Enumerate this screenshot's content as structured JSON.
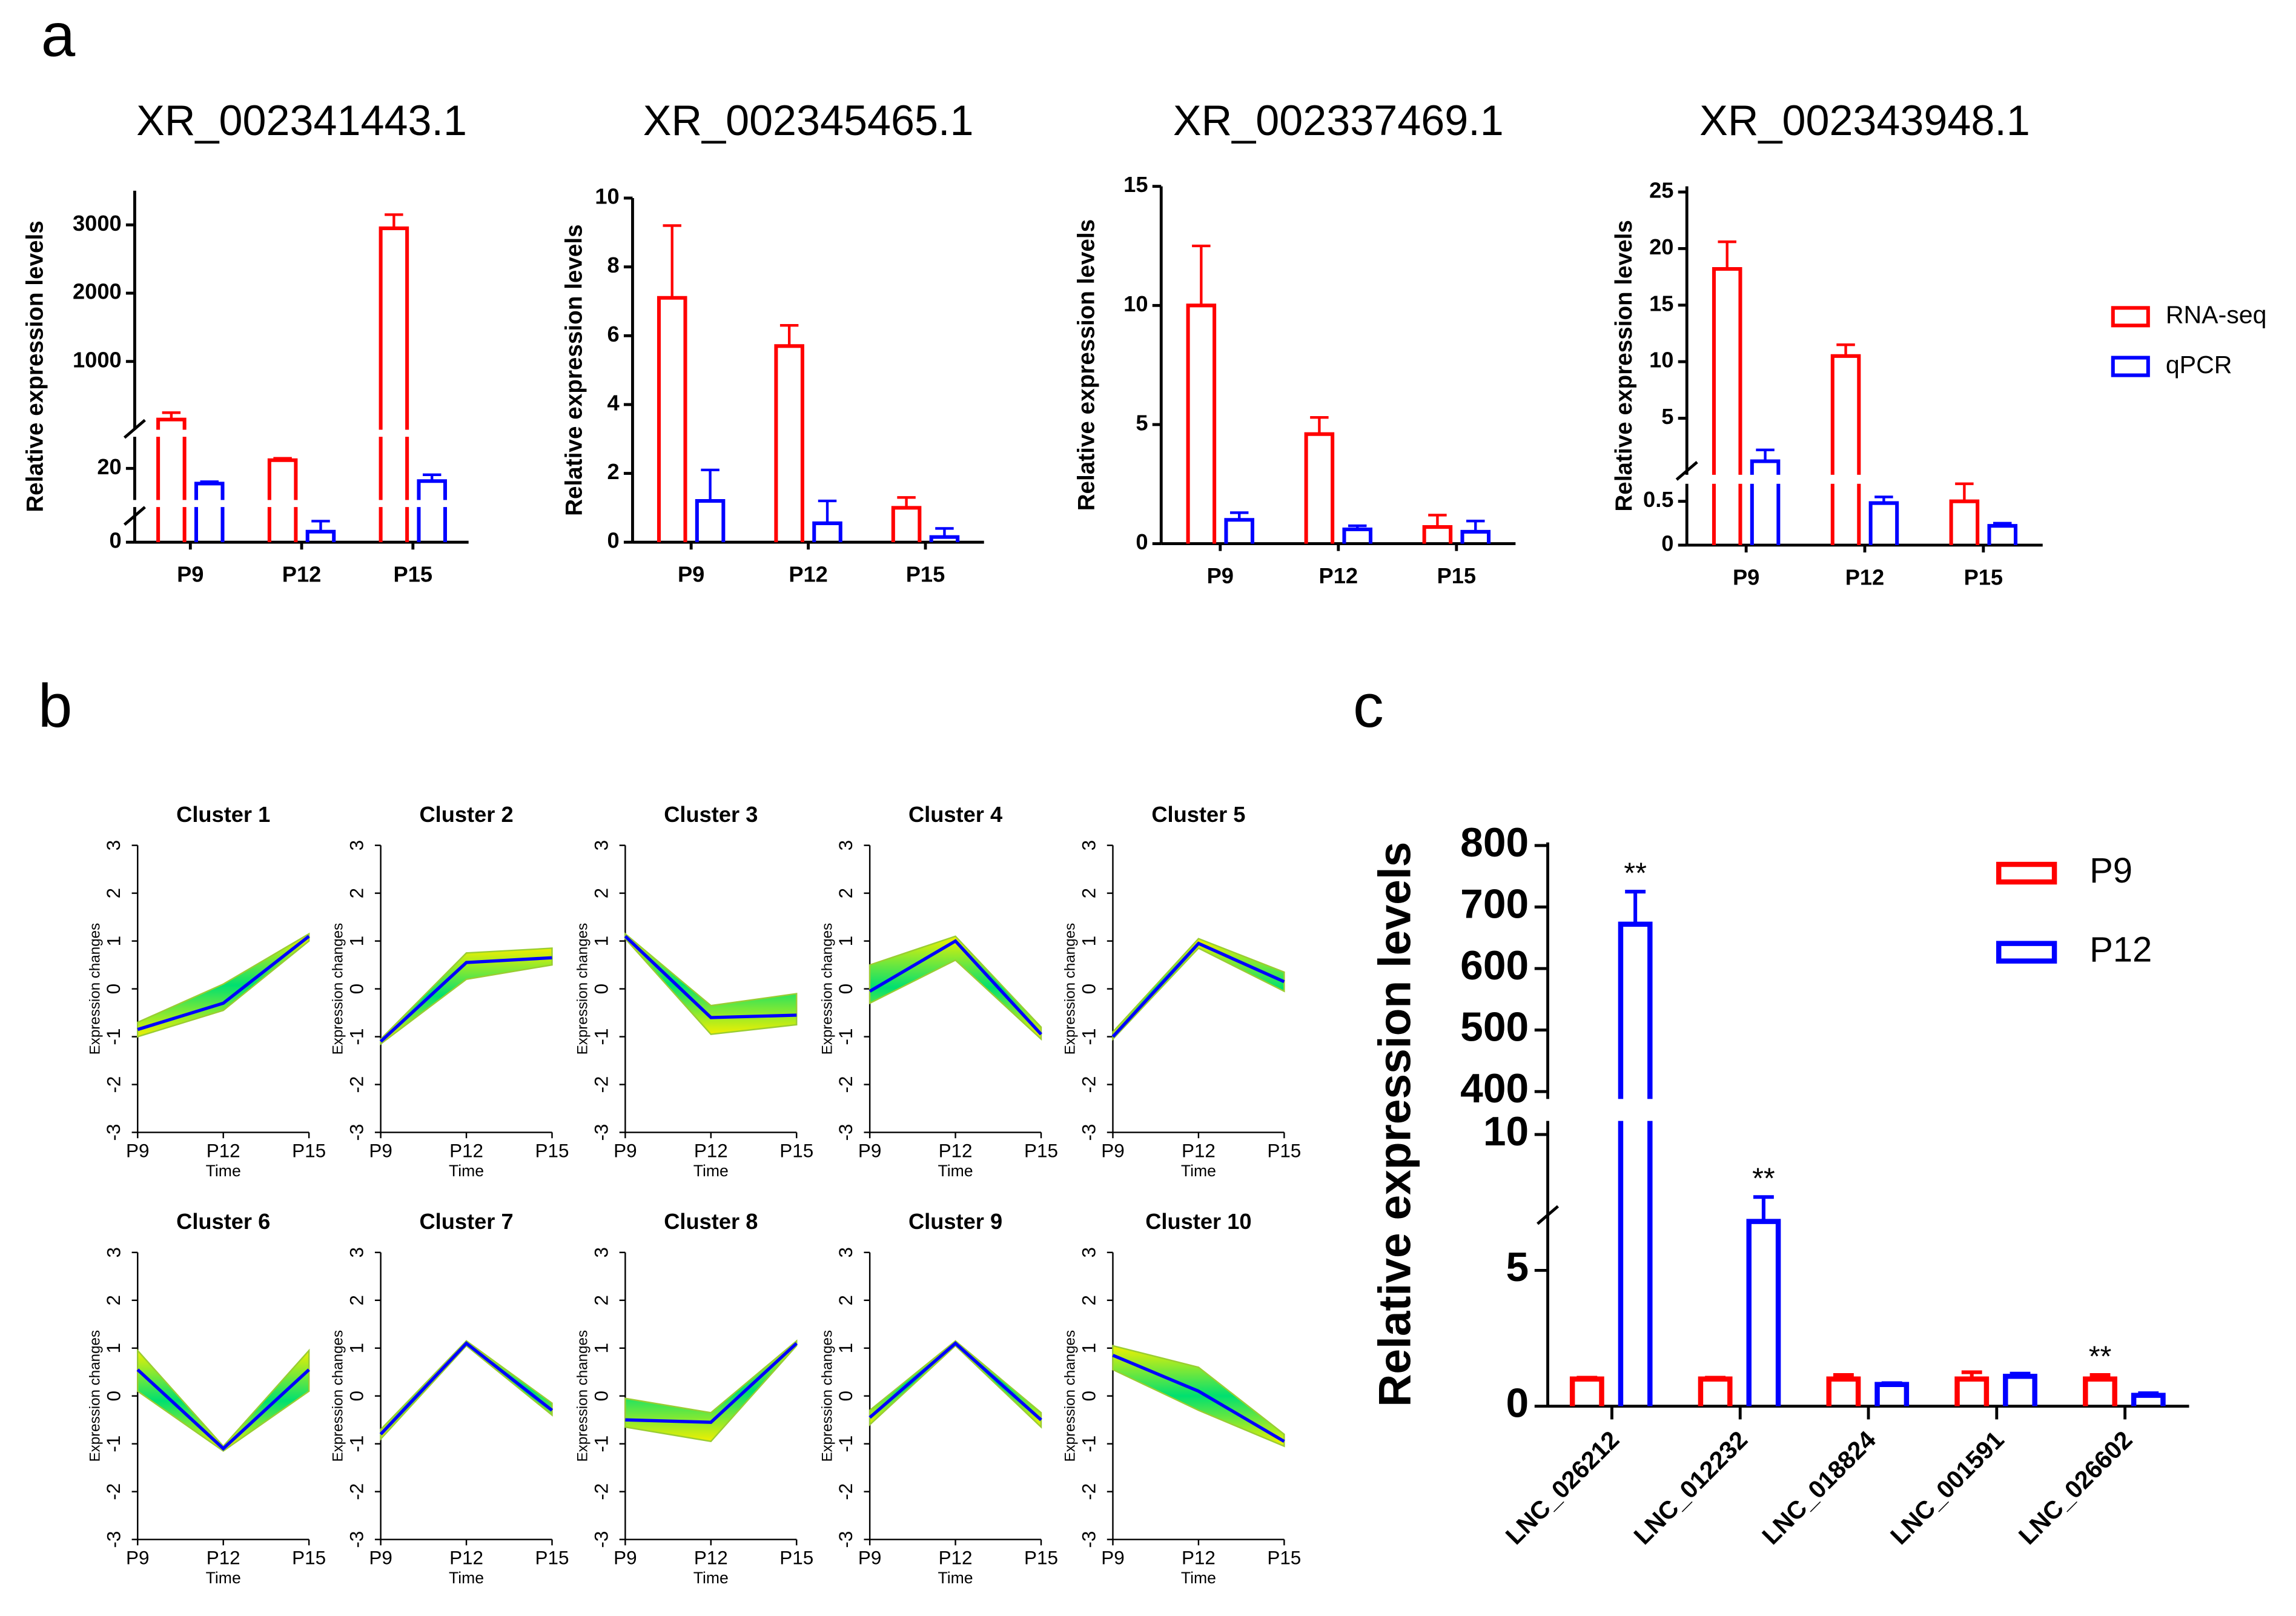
{
  "panel_labels": [
    "a",
    "b",
    "c"
  ],
  "chart_data": [
    {
      "type": "bar",
      "title": "XR_002341443.1",
      "ylabel": "Relative expression levels",
      "categories": [
        "P9",
        "P12",
        "P15"
      ],
      "ysegments": [
        {
          "ylim": [
            0,
            10
          ],
          "yticks": [
            0
          ]
        },
        {
          "ylim": [
            15,
            25
          ],
          "yticks": [
            20
          ]
        },
        {
          "ylim": [
            0,
            3500
          ],
          "yticks": [
            1000,
            2000,
            3000
          ]
        }
      ],
      "series": [
        {
          "color": "#ff0000",
          "values": [
            150,
            21.3,
            2950
          ],
          "errors": [
            100,
            0.3,
            200
          ]
        },
        {
          "color": "#0000ff",
          "values": [
            17.6,
            3,
            18
          ],
          "errors": [
            0.3,
            3,
            1
          ]
        }
      ]
    },
    {
      "type": "bar",
      "title": "XR_002345465.1",
      "ylabel": "Relative expression levels",
      "categories": [
        "P9",
        "P12",
        "P15"
      ],
      "ylim": [
        0,
        10
      ],
      "yticks": [
        0,
        2,
        4,
        6,
        8,
        10
      ],
      "series": [
        {
          "color": "#ff0000",
          "values": [
            7.1,
            5.7,
            1.0
          ],
          "errors": [
            2.1,
            0.6,
            0.3
          ]
        },
        {
          "color": "#0000ff",
          "values": [
            1.2,
            0.55,
            0.15
          ],
          "errors": [
            0.9,
            0.65,
            0.25
          ]
        }
      ]
    },
    {
      "type": "bar",
      "title": "XR_002337469.1",
      "ylabel": "Relative expression levels",
      "categories": [
        "P9",
        "P12",
        "P15"
      ],
      "ylim": [
        0,
        15
      ],
      "yticks": [
        0,
        5,
        10,
        15
      ],
      "series": [
        {
          "color": "#ff0000",
          "values": [
            10,
            4.6,
            0.7
          ],
          "errors": [
            2.5,
            0.7,
            0.5
          ]
        },
        {
          "color": "#0000ff",
          "values": [
            1.0,
            0.6,
            0.5
          ],
          "errors": [
            0.3,
            0.15,
            0.45
          ]
        }
      ]
    },
    {
      "type": "bar",
      "title": "XR_002343948.1",
      "ylabel": "Relative expression levels",
      "categories": [
        "P9",
        "P12",
        "P15"
      ],
      "ysegments": [
        {
          "ylim": [
            0,
            0.7
          ],
          "yticks": [
            0,
            0.5
          ]
        },
        {
          "ylim": [
            0,
            25.5
          ],
          "yticks": [
            5,
            10,
            15,
            20,
            25
          ]
        }
      ],
      "legend": "right",
      "series": [
        {
          "name": "RNA-seq",
          "color": "#ff0000",
          "values": [
            18.2,
            10.5,
            0.5
          ],
          "errors": [
            2.4,
            1.0,
            0.2
          ]
        },
        {
          "name": "qPCR",
          "color": "#0000ff",
          "values": [
            1.2,
            0.48,
            0.22
          ],
          "errors": [
            1.0,
            0.07,
            0.03
          ]
        }
      ]
    },
    {
      "type": "line",
      "title": "Cluster 1",
      "xlabel": "Time",
      "ylabel": "Expression changes",
      "categories": [
        "P9",
        "P12",
        "P15"
      ],
      "ylim": [
        -3,
        3
      ],
      "yticks": [
        -3,
        -2,
        -1,
        0,
        1,
        2,
        3
      ],
      "color": "#0000ff",
      "band_color": "#9acd32",
      "values": [
        -0.85,
        -0.3,
        1.1
      ],
      "band_low": [
        -1.0,
        -0.45,
        1.0
      ],
      "band_high": [
        -0.7,
        0.1,
        1.15
      ]
    },
    {
      "type": "line",
      "title": "Cluster 2",
      "xlabel": "Time",
      "ylabel": "Expression changes",
      "categories": [
        "P9",
        "P12",
        "P15"
      ],
      "ylim": [
        -3,
        3
      ],
      "yticks": [
        -3,
        -2,
        -1,
        0,
        1,
        2,
        3
      ],
      "color": "#0000ff",
      "band_color": "#9acd32",
      "values": [
        -1.1,
        0.55,
        0.65
      ],
      "band_low": [
        -1.15,
        0.2,
        0.5
      ],
      "band_high": [
        -1.05,
        0.75,
        0.85
      ]
    },
    {
      "type": "line",
      "title": "Cluster 3",
      "xlabel": "Time",
      "ylabel": "Expression changes",
      "categories": [
        "P9",
        "P12",
        "P15"
      ],
      "ylim": [
        -3,
        3
      ],
      "yticks": [
        -3,
        -2,
        -1,
        0,
        1,
        2,
        3
      ],
      "color": "#0000ff",
      "band_color": "#9acd32",
      "values": [
        1.1,
        -0.6,
        -0.55
      ],
      "band_low": [
        1.05,
        -0.95,
        -0.75
      ],
      "band_high": [
        1.15,
        -0.35,
        -0.1
      ]
    },
    {
      "type": "line",
      "title": "Cluster 4",
      "xlabel": "Time",
      "ylabel": "Expression changes",
      "categories": [
        "P9",
        "P12",
        "P15"
      ],
      "ylim": [
        -3,
        3
      ],
      "yticks": [
        -3,
        -2,
        -1,
        0,
        1,
        2,
        3
      ],
      "color": "#0000ff",
      "band_color": "#9acd32",
      "values": [
        -0.05,
        1.0,
        -0.95
      ],
      "band_low": [
        -0.3,
        0.6,
        -1.05
      ],
      "band_high": [
        0.5,
        1.1,
        -0.8
      ]
    },
    {
      "type": "line",
      "title": "Cluster 5",
      "xlabel": "Time",
      "ylabel": "Expression changes",
      "categories": [
        "P9",
        "P12",
        "P15"
      ],
      "ylim": [
        -3,
        3
      ],
      "yticks": [
        -3,
        -2,
        -1,
        0,
        1,
        2,
        3
      ],
      "color": "#0000ff",
      "band_color": "#9acd32",
      "values": [
        -1.0,
        0.95,
        0.15
      ],
      "band_low": [
        -1.05,
        0.85,
        -0.05
      ],
      "band_high": [
        -0.9,
        1.05,
        0.35
      ]
    },
    {
      "type": "line",
      "title": "Cluster 6",
      "xlabel": "Time",
      "ylabel": "Expression changes",
      "categories": [
        "P9",
        "P12",
        "P15"
      ],
      "ylim": [
        -3,
        3
      ],
      "yticks": [
        -3,
        -2,
        -1,
        0,
        1,
        2,
        3
      ],
      "color": "#0000ff",
      "band_color": "#9acd32",
      "values": [
        0.55,
        -1.1,
        0.55
      ],
      "band_low": [
        0.1,
        -1.15,
        0.1
      ],
      "band_high": [
        0.95,
        -1.05,
        0.95
      ]
    },
    {
      "type": "line",
      "title": "Cluster 7",
      "xlabel": "Time",
      "ylabel": "Expression changes",
      "categories": [
        "P9",
        "P12",
        "P15"
      ],
      "ylim": [
        -3,
        3
      ],
      "yticks": [
        -3,
        -2,
        -1,
        0,
        1,
        2,
        3
      ],
      "color": "#0000ff",
      "band_color": "#9acd32",
      "values": [
        -0.8,
        1.1,
        -0.3
      ],
      "band_low": [
        -0.9,
        1.05,
        -0.4
      ],
      "band_high": [
        -0.7,
        1.15,
        -0.15
      ]
    },
    {
      "type": "line",
      "title": "Cluster 8",
      "xlabel": "Time",
      "ylabel": "Expression changes",
      "categories": [
        "P9",
        "P12",
        "P15"
      ],
      "ylim": [
        -3,
        3
      ],
      "yticks": [
        -3,
        -2,
        -1,
        0,
        1,
        2,
        3
      ],
      "color": "#0000ff",
      "band_color": "#9acd32",
      "values": [
        -0.5,
        -0.55,
        1.1
      ],
      "band_low": [
        -0.65,
        -0.95,
        1.05
      ],
      "band_high": [
        -0.05,
        -0.35,
        1.15
      ]
    },
    {
      "type": "line",
      "title": "Cluster 9",
      "xlabel": "Time",
      "ylabel": "Expression changes",
      "categories": [
        "P9",
        "P12",
        "P15"
      ],
      "ylim": [
        -3,
        3
      ],
      "yticks": [
        -3,
        -2,
        -1,
        0,
        1,
        2,
        3
      ],
      "color": "#0000ff",
      "band_color": "#9acd32",
      "values": [
        -0.45,
        1.1,
        -0.5
      ],
      "band_low": [
        -0.6,
        1.05,
        -0.65
      ],
      "band_high": [
        -0.3,
        1.15,
        -0.35
      ]
    },
    {
      "type": "line",
      "title": "Cluster 10",
      "xlabel": "Time",
      "ylabel": "Expression changes",
      "categories": [
        "P9",
        "P12",
        "P15"
      ],
      "ylim": [
        -3,
        3
      ],
      "yticks": [
        -3,
        -2,
        -1,
        0,
        1,
        2,
        3
      ],
      "color": "#0000ff",
      "band_color": "#9acd32",
      "values": [
        0.85,
        0.1,
        -0.95
      ],
      "band_low": [
        0.55,
        -0.3,
        -1.05
      ],
      "band_high": [
        1.05,
        0.6,
        -0.8
      ]
    },
    {
      "type": "bar",
      "ylabel": "Relative expression levels",
      "categories": [
        "LNC_026212",
        "LNC_012232",
        "LNC_018824",
        "LNC_001591",
        "LNC_026602"
      ],
      "ysegments": [
        {
          "ylim": [
            0,
            10.5
          ],
          "yticks": [
            0,
            5,
            10
          ]
        },
        {
          "ylim": [
            388,
            805
          ],
          "yticks": [
            400,
            500,
            600,
            700,
            800
          ]
        }
      ],
      "legend": "upper right",
      "series": [
        {
          "name": "P9",
          "color": "#ff0000",
          "values": [
            1,
            1,
            1,
            1,
            1
          ],
          "errors": [
            0.05,
            0.05,
            0.15,
            0.25,
            0.15
          ],
          "annotations": [
            null,
            null,
            null,
            null,
            "**"
          ]
        },
        {
          "name": "P12",
          "color": "#0000ff",
          "values": [
            672,
            6.8,
            0.8,
            1.1,
            0.4
          ],
          "errors": [
            53,
            0.9,
            0.05,
            0.1,
            0.08
          ],
          "annotations": [
            "**",
            "**",
            null,
            null,
            null
          ]
        }
      ]
    }
  ]
}
